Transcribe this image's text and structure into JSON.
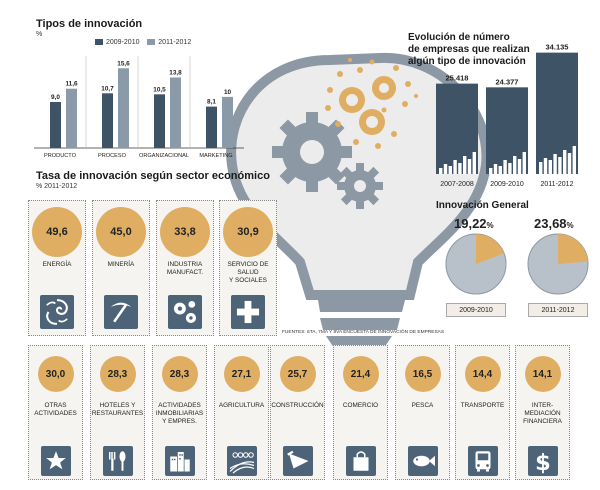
{
  "colors": {
    "dark": "#3e5366",
    "light": "#8a9aa8",
    "accent": "#e0ae62",
    "icon_bg": "#4d6478",
    "gear": "#8c98a4",
    "bulb_fill": "#eeeeee"
  },
  "tipos": {
    "title": "Tipos de innovación",
    "unit": "%",
    "legend": [
      "2009-2010",
      "2011-2012"
    ]
  },
  "tasa": {
    "title": "Tasa de innovación según sector económico",
    "subtitle": "% 2011-2012"
  },
  "evolucion": {
    "title_line1": "Evolución de número",
    "title_line2": "de empresas que realizan",
    "title_line3": "algún tipo de innovación"
  },
  "general": {
    "title": "Innovación General",
    "periods": [
      "2009-2010",
      "2011-2012"
    ],
    "values": [
      "19,22",
      "23,68"
    ],
    "pct_sign": "%",
    "shares": [
      19.22,
      23.68
    ]
  },
  "fuentes": "FUENTES: 6TA, 7MA Y 8VA ENCUESTA DE INNOVACIÓN DE EMPRESAS",
  "chart_data": [
    {
      "type": "bar",
      "title": "Tipos de innovación",
      "ylabel": "%",
      "categories": [
        "PRODUCTO",
        "PROCESO",
        "ORGANIZACIONAL",
        "MARKETING"
      ],
      "series": [
        {
          "name": "2009-2010",
          "values": [
            9.0,
            10.7,
            10.5,
            8.1
          ],
          "labels": [
            "9,0",
            "10,7",
            "10,5",
            "8,1"
          ]
        },
        {
          "name": "2011-2012",
          "values": [
            11.6,
            15.6,
            13.8,
            10.0
          ],
          "labels": [
            "11,6",
            "15,6",
            "13,8",
            "10"
          ]
        }
      ],
      "ylim": [
        0,
        18
      ]
    },
    {
      "type": "bar",
      "title": "Evolución de número de empresas que realizan algún tipo de innovación",
      "categories": [
        "2007-2008",
        "2009-2010",
        "2011-2012"
      ],
      "values": [
        25418,
        24377,
        34135
      ],
      "labels": [
        "25.418",
        "24.377",
        "34.135"
      ],
      "ylim": [
        0,
        36000
      ]
    },
    {
      "type": "pie",
      "title": "Innovación General",
      "categories": [
        "2009-2010",
        "2011-2012"
      ],
      "values": [
        19.22,
        23.68
      ]
    },
    {
      "type": "table",
      "title": "Tasa de innovación según sector económico",
      "subtitle": "% 2011-2012",
      "rows": [
        {
          "sector": "ENERGÍA",
          "value": "49,6"
        },
        {
          "sector": "MINERÍA",
          "value": "45,0"
        },
        {
          "sector": "INDUSTRIA MANUFACT.",
          "value": "33,8"
        },
        {
          "sector": "SERVICIO DE SALUD Y SOCIALES",
          "value": "30,9"
        },
        {
          "sector": "OTRAS ACTIVIDADES",
          "value": "30,0"
        },
        {
          "sector": "HOTELES Y RESTAURANTES",
          "value": "28,3"
        },
        {
          "sector": "ACTIVIDADES INMOBILIARIAS Y EMPRES.",
          "value": "28,3"
        },
        {
          "sector": "AGRICULTURA",
          "value": "27,1"
        },
        {
          "sector": "CONSTRUCCIÓN",
          "value": "25,7"
        },
        {
          "sector": "COMERCIO",
          "value": "21,4"
        },
        {
          "sector": "PESCA",
          "value": "16,5"
        },
        {
          "sector": "TRANSPORTE",
          "value": "14,4"
        },
        {
          "sector": "INTER-MEDIACIÓN FINANCIERA",
          "value": "14,1"
        }
      ]
    }
  ],
  "sectors_top": [
    {
      "value": "49,6",
      "label_lines": [
        "ENERGÍA"
      ],
      "icon": "swirl-icon"
    },
    {
      "value": "45,0",
      "label_lines": [
        "MINERÍA"
      ],
      "icon": "pickaxe-icon"
    },
    {
      "value": "33,8",
      "label_lines": [
        "INDUSTRIA",
        "MANUFACT."
      ],
      "icon": "gears-icon"
    },
    {
      "value": "30,9",
      "label_lines": [
        "SERVICIO DE",
        "SALUD",
        "Y SOCIALES"
      ],
      "icon": "cross-icon"
    }
  ],
  "sectors_bottom": [
    {
      "value": "30,0",
      "label_lines": [
        "OTRAS",
        "ACTIVIDADES"
      ],
      "icon": "star-icon"
    },
    {
      "value": "28,3",
      "label_lines": [
        "HOTELES Y",
        "RESTAURANTES"
      ],
      "icon": "cutlery-icon"
    },
    {
      "value": "28,3",
      "label_lines": [
        "ACTIVIDADES",
        "INMOBILIARIAS",
        "Y EMPRES."
      ],
      "icon": "buildings-icon"
    },
    {
      "value": "27,1",
      "label_lines": [
        "AGRICULTURA"
      ],
      "icon": "field-icon"
    },
    {
      "value": "25,7",
      "label_lines": [
        "CONSTRUCCIÓN"
      ],
      "icon": "trowel-icon"
    },
    {
      "value": "21,4",
      "label_lines": [
        "COMERCIO"
      ],
      "icon": "bag-icon"
    },
    {
      "value": "16,5",
      "label_lines": [
        "PESCA"
      ],
      "icon": "fish-icon"
    },
    {
      "value": "14,4",
      "label_lines": [
        "TRANSPORTE"
      ],
      "icon": "bus-icon"
    },
    {
      "value": "14,1",
      "label_lines": [
        "INTER-",
        "MEDIACIÓN",
        "FINANCIERA"
      ],
      "icon": "dollar-icon"
    }
  ]
}
